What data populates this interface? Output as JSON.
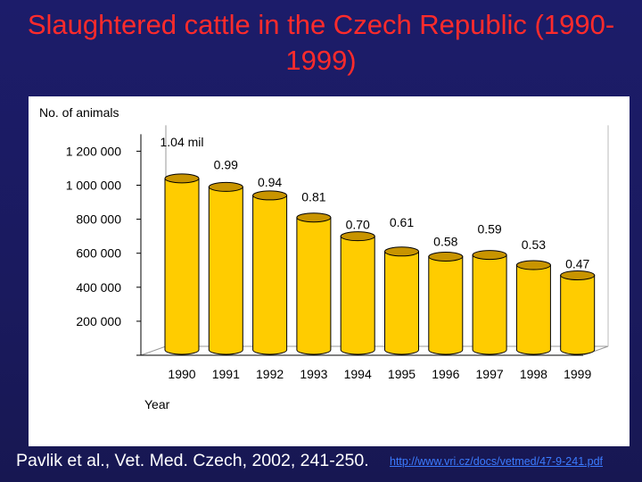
{
  "slide": {
    "title_line1": "Slaughtered cattle in the Czech Republic (1990-",
    "title_line2": "1999)",
    "citation": "Pavlik et al., Vet. Med. Czech, 2002, 241-250.",
    "link": "http://www.vri.cz/docs/vetmed/47-9-241.pdf"
  },
  "colors": {
    "background": "#1a1a5e",
    "title": "#ff2b2b",
    "bar_fill": "#ffcc00",
    "bar_shadow": "#c89400",
    "link": "#3b7bff"
  },
  "chart_data": {
    "type": "bar",
    "style": "3d-cylinder",
    "ylabel": "No. of animals",
    "xlabel": "Year",
    "ylim": [
      0,
      1300000
    ],
    "yticks": [
      200000,
      400000,
      600000,
      800000,
      1000000,
      1200000
    ],
    "ytick_labels": [
      "200 000",
      "400 000",
      "600 000",
      "800 000",
      "1 000 000",
      "1 200 000"
    ],
    "categories": [
      "1990",
      "1991",
      "1992",
      "1993",
      "1994",
      "1995",
      "1996",
      "1997",
      "1998",
      "1999"
    ],
    "values": [
      1040000,
      990000,
      940000,
      810000,
      700000,
      610000,
      580000,
      590000,
      530000,
      470000
    ],
    "data_labels": [
      "1.04 mil",
      "0.99",
      "0.94",
      "0.81",
      "0.70",
      "0.61",
      "0.58",
      "0.59",
      "0.53",
      "0.47"
    ],
    "grid": false,
    "legend": "none"
  }
}
